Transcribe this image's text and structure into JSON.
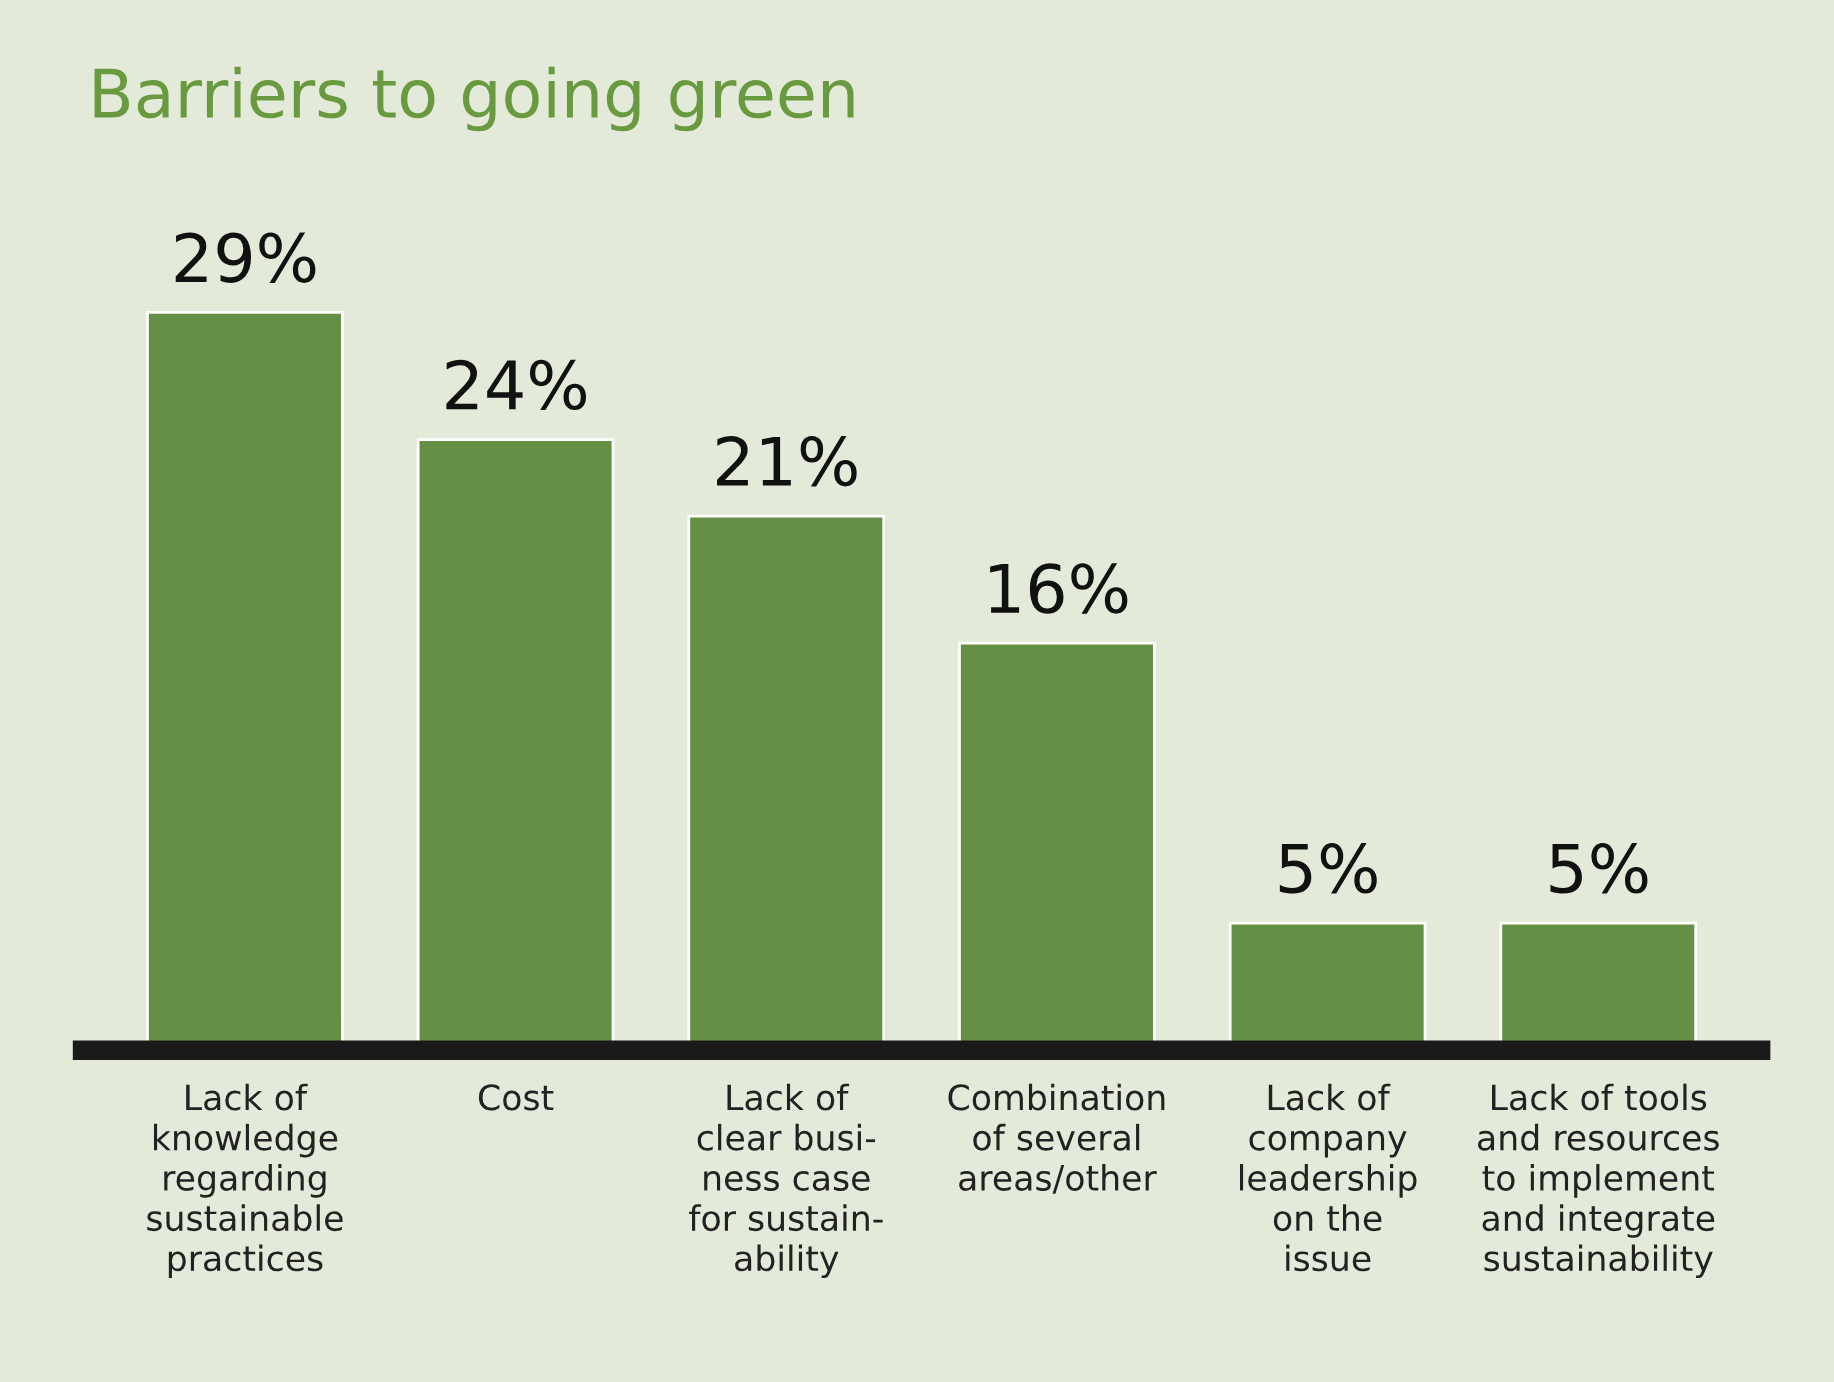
{
  "chart_data": {
    "type": "bar",
    "title": "Barriers to going green",
    "categories": [
      "Lack of\nknowledge\nregarding\nsustainable\npractices",
      "Cost",
      "Lack of\nclear busi-\nness case\nfor sustain-\nability",
      "Combination\nof several\nareas/other",
      "Lack of\ncompany\nleadership\non the\nissue",
      "Lack of tools\nand resources\nto implement\nand integrate\nsustainability"
    ],
    "values": [
      29,
      24,
      21,
      16,
      5,
      5
    ],
    "value_labels": [
      "29%",
      "24%",
      "21%",
      "16%",
      "5%",
      "5%"
    ],
    "color": "#648f44",
    "grid": false,
    "legend": false
  }
}
